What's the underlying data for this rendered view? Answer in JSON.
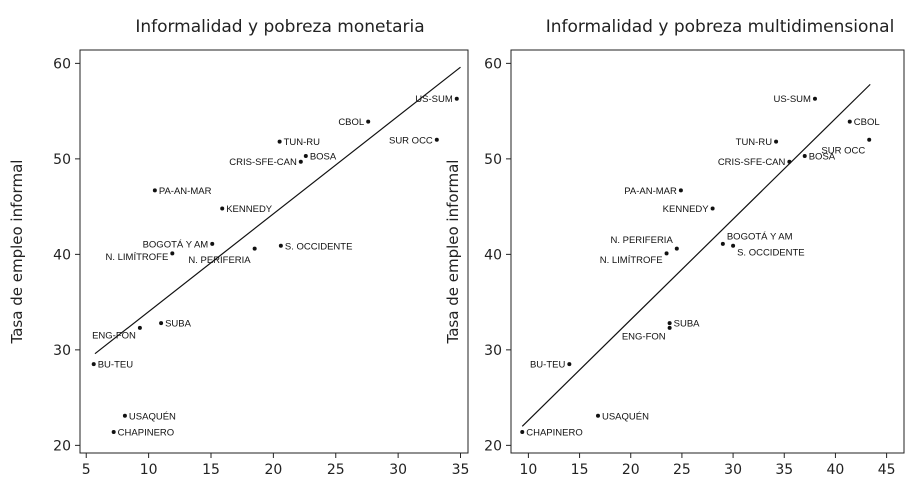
{
  "chart_data": [
    {
      "type": "scatter",
      "title": "Informalidad y pobreza monetaria",
      "xlabel": "",
      "ylabel": "Tasa de empleo informal",
      "xlim": [
        4.5,
        35.6
      ],
      "ylim": [
        19.2,
        61.4
      ],
      "xticks": [
        5,
        10,
        15,
        20,
        25,
        30,
        35
      ],
      "yticks": [
        20,
        30,
        40,
        50,
        60
      ],
      "points": [
        {
          "label": "US-SUM",
          "x": 34.7,
          "y": 56.3
        },
        {
          "label": "CBOL",
          "x": 27.6,
          "y": 53.9
        },
        {
          "label": "SUR OCC",
          "x": 33.1,
          "y": 52.0
        },
        {
          "label": "TUN-RU",
          "x": 20.5,
          "y": 51.8
        },
        {
          "label": "BOSA",
          "x": 22.6,
          "y": 50.3
        },
        {
          "label": "CRIS-SFE-CAN",
          "x": 22.2,
          "y": 49.7
        },
        {
          "label": "PA-AN-MAR",
          "x": 10.5,
          "y": 46.7
        },
        {
          "label": "KENNEDY",
          "x": 15.9,
          "y": 44.8
        },
        {
          "label": "BOGOTÁ Y AM",
          "x": 15.1,
          "y": 41.1
        },
        {
          "label": "S. OCCIDENTE",
          "x": 20.6,
          "y": 40.9
        },
        {
          "label": "N. PERIFERIA",
          "x": 18.5,
          "y": 40.6
        },
        {
          "label": "N. LIMÍTROFE",
          "x": 11.9,
          "y": 40.1
        },
        {
          "label": "SUBA",
          "x": 11.0,
          "y": 32.8
        },
        {
          "label": "ENG-FON",
          "x": 9.3,
          "y": 32.3
        },
        {
          "label": "BU-TEU",
          "x": 5.6,
          "y": 28.5
        },
        {
          "label": "USAQUÉN",
          "x": 8.1,
          "y": 23.1
        },
        {
          "label": "CHAPINERO",
          "x": 7.2,
          "y": 21.4
        }
      ],
      "fit_line": {
        "x": [
          5.7,
          35.0
        ],
        "y": [
          29.6,
          59.6
        ]
      }
    },
    {
      "type": "scatter",
      "title": "Informalidad y pobreza multidimensional",
      "xlabel": "",
      "ylabel": "Tasa de empleo informal",
      "xlim": [
        8.3,
        46.7
      ],
      "ylim": [
        19.2,
        61.4
      ],
      "xticks": [
        10,
        15,
        20,
        25,
        30,
        35,
        40,
        45
      ],
      "yticks": [
        20,
        30,
        40,
        50,
        60
      ],
      "points": [
        {
          "label": "US-SUM",
          "x": 38.0,
          "y": 56.3
        },
        {
          "label": "CBOL",
          "x": 41.4,
          "y": 53.9
        },
        {
          "label": "SUR OCC",
          "x": 43.3,
          "y": 52.0
        },
        {
          "label": "TUN-RU",
          "x": 34.2,
          "y": 51.8
        },
        {
          "label": "BOSA",
          "x": 37.0,
          "y": 50.3
        },
        {
          "label": "CRIS-SFE-CAN",
          "x": 35.5,
          "y": 49.7
        },
        {
          "label": "PA-AN-MAR",
          "x": 24.9,
          "y": 46.7
        },
        {
          "label": "KENNEDY",
          "x": 28.0,
          "y": 44.8
        },
        {
          "label": "BOGOTÁ Y AM",
          "x": 29.0,
          "y": 41.1
        },
        {
          "label": "S. OCCIDENTE",
          "x": 30.0,
          "y": 40.9
        },
        {
          "label": "N. PERIFERIA",
          "x": 24.5,
          "y": 40.6
        },
        {
          "label": "N. LIMÍTROFE",
          "x": 23.5,
          "y": 40.1
        },
        {
          "label": "SUBA",
          "x": 23.8,
          "y": 32.8
        },
        {
          "label": "ENG-FON",
          "x": 23.8,
          "y": 32.3
        },
        {
          "label": "BU-TEU",
          "x": 14.0,
          "y": 28.5
        },
        {
          "label": "USAQUÉN",
          "x": 16.8,
          "y": 23.1
        },
        {
          "label": "CHAPINERO",
          "x": 9.4,
          "y": 21.4
        }
      ],
      "fit_line": {
        "x": [
          9.4,
          43.4
        ],
        "y": [
          22.0,
          57.8
        ]
      }
    }
  ]
}
